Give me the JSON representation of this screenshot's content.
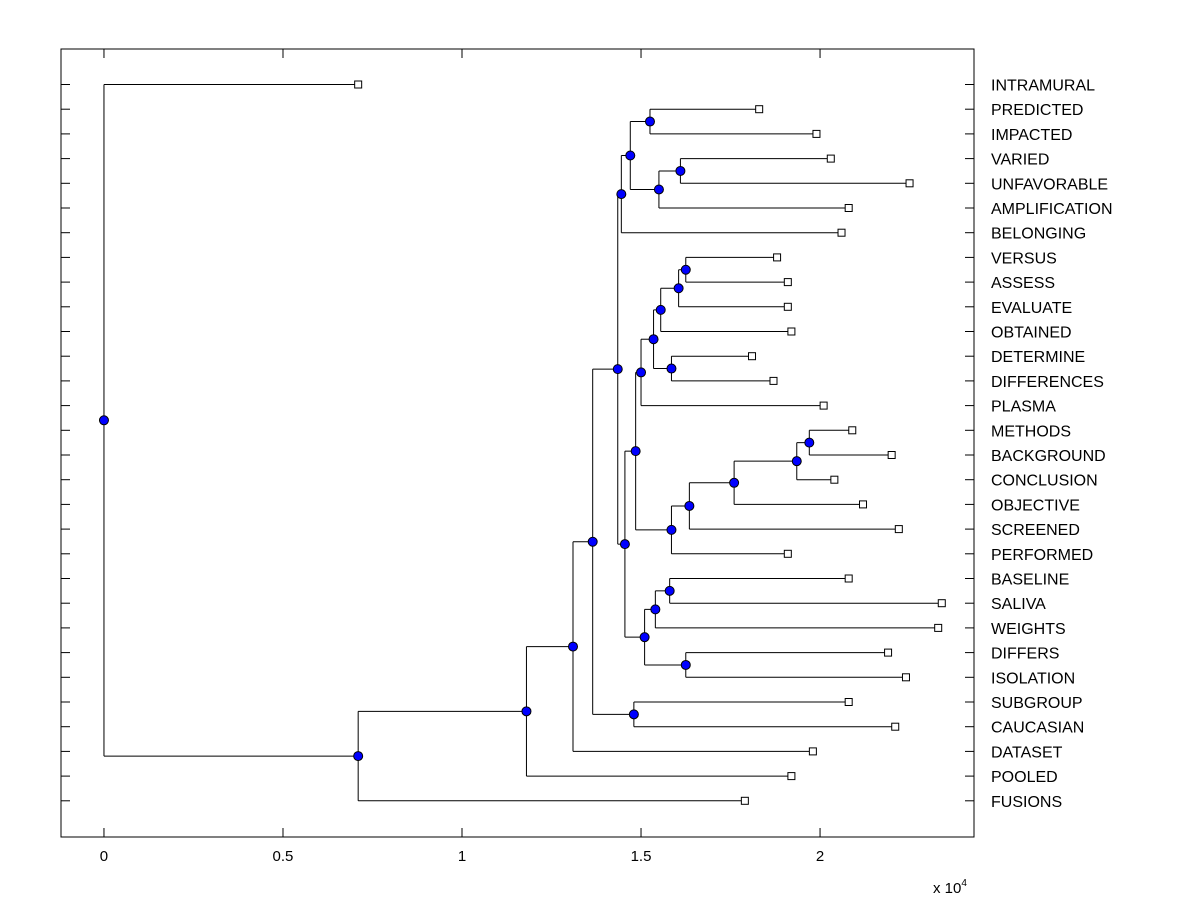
{
  "chart_data": {
    "type": "dendrogram",
    "title": "",
    "xlabel": "",
    "ylabel": "",
    "x_multiplier_label": {
      "base": "x 10",
      "exponent": "4"
    },
    "xlim": [
      -0.12,
      2.43
    ],
    "x_ticks": [
      0,
      0.5,
      1,
      1.5,
      2
    ],
    "x_tick_labels": [
      "0",
      "0.5",
      "1",
      "1.5",
      "2"
    ],
    "grid": false,
    "leaves": [
      "INTRAMURAL",
      "PREDICTED",
      "IMPACTED",
      "VARIED",
      "UNFAVORABLE",
      "AMPLIFICATION",
      "BELONGING",
      "VERSUS",
      "ASSESS",
      "EVALUATE",
      "OBTAINED",
      "DETERMINE",
      "DIFFERENCES",
      "PLASMA",
      "METHODS",
      "BACKGROUND",
      "CONCLUSION",
      "OBJECTIVE",
      "SCREENED",
      "PERFORMED",
      "BASELINE",
      "SALIVA",
      "WEIGHTS",
      "DIFFERS",
      "ISOLATION",
      "SUBGROUP",
      "CAUCASIAN",
      "DATASET",
      "POOLED",
      "FUSIONS"
    ],
    "leaf_x": [
      0.71,
      1.83,
      1.99,
      2.03,
      2.25,
      2.08,
      2.06,
      1.88,
      1.91,
      1.91,
      1.92,
      1.81,
      1.87,
      2.01,
      2.09,
      2.2,
      2.04,
      2.12,
      2.22,
      1.91,
      2.08,
      2.34,
      2.33,
      2.19,
      2.24,
      2.08,
      2.21,
      1.98,
      1.92,
      1.79
    ],
    "nodes": [
      {
        "id": "n1",
        "x": 1.525,
        "children": [
          "PREDICTED",
          "IMPACTED"
        ]
      },
      {
        "id": "n2",
        "x": 1.61,
        "children": [
          "VARIED",
          "UNFAVORABLE"
        ]
      },
      {
        "id": "n3",
        "x": 1.55,
        "children": [
          "n2",
          "AMPLIFICATION"
        ]
      },
      {
        "id": "n4",
        "x": 1.47,
        "children": [
          "n1",
          "n3"
        ]
      },
      {
        "id": "n5",
        "x": 1.445,
        "children": [
          "n4",
          "BELONGING"
        ]
      },
      {
        "id": "n6",
        "x": 1.625,
        "children": [
          "VERSUS",
          "ASSESS"
        ]
      },
      {
        "id": "n7",
        "x": 1.605,
        "children": [
          "n6",
          "EVALUATE"
        ]
      },
      {
        "id": "n8",
        "x": 1.555,
        "children": [
          "n7",
          "OBTAINED"
        ]
      },
      {
        "id": "n9",
        "x": 1.585,
        "children": [
          "DETERMINE",
          "DIFFERENCES"
        ]
      },
      {
        "id": "n10",
        "x": 1.535,
        "children": [
          "n8",
          "n9"
        ]
      },
      {
        "id": "n11",
        "x": 1.5,
        "children": [
          "n10",
          "PLASMA"
        ]
      },
      {
        "id": "n12",
        "x": 1.97,
        "children": [
          "METHODS",
          "BACKGROUND"
        ]
      },
      {
        "id": "n13",
        "x": 1.935,
        "children": [
          "n12",
          "CONCLUSION"
        ]
      },
      {
        "id": "n14",
        "x": 1.76,
        "children": [
          "n13",
          "OBJECTIVE"
        ]
      },
      {
        "id": "n15",
        "x": 1.635,
        "children": [
          "n14",
          "SCREENED"
        ]
      },
      {
        "id": "n16",
        "x": 1.585,
        "children": [
          "n15",
          "PERFORMED"
        ]
      },
      {
        "id": "n17",
        "x": 1.485,
        "children": [
          "n11",
          "n16"
        ]
      },
      {
        "id": "n18",
        "x": 1.58,
        "children": [
          "BASELINE",
          "SALIVA"
        ]
      },
      {
        "id": "n19",
        "x": 1.54,
        "children": [
          "n18",
          "WEIGHTS"
        ]
      },
      {
        "id": "n20",
        "x": 1.625,
        "children": [
          "DIFFERS",
          "ISOLATION"
        ]
      },
      {
        "id": "n21",
        "x": 1.51,
        "children": [
          "n19",
          "n20"
        ]
      },
      {
        "id": "n22",
        "x": 1.455,
        "children": [
          "n17",
          "n21"
        ]
      },
      {
        "id": "n23",
        "x": 1.435,
        "children": [
          "n5",
          "n22"
        ]
      },
      {
        "id": "n24",
        "x": 1.48,
        "children": [
          "SUBGROUP",
          "CAUCASIAN"
        ]
      },
      {
        "id": "n25",
        "x": 1.365,
        "children": [
          "n23",
          "n24"
        ]
      },
      {
        "id": "n26",
        "x": 1.31,
        "children": [
          "n25",
          "DATASET"
        ]
      },
      {
        "id": "n27",
        "x": 1.18,
        "children": [
          "n26",
          "POOLED"
        ]
      },
      {
        "id": "n28",
        "x": 0.71,
        "children": [
          "n27",
          "FUSIONS"
        ]
      },
      {
        "id": "n29",
        "x": 0.0,
        "children": [
          "INTRAMURAL",
          "n28"
        ]
      }
    ],
    "node_marker": {
      "shape": "circle",
      "fill": "#0000ff",
      "stroke": "#000000"
    },
    "leaf_marker": {
      "shape": "square",
      "fill": "#ffffff",
      "stroke": "#000000"
    },
    "line_color": "#000000"
  }
}
